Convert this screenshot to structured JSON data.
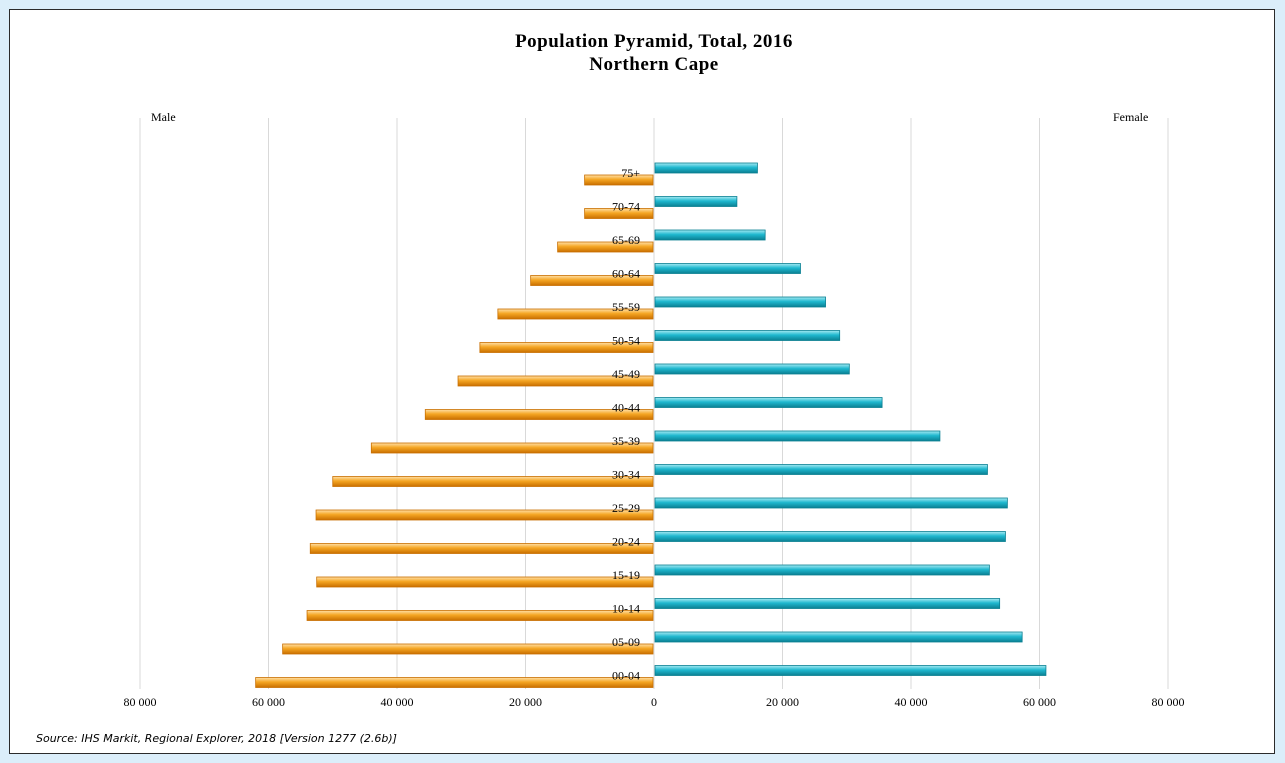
{
  "source": "Source: IHS Markit, Regional Explorer, 2018 [Version 1277 (2.6b)]",
  "colors": {
    "male": "#f5a623",
    "male_dark": "#c96f00",
    "female": "#1fb8cf",
    "female_dark": "#0a7f92",
    "grid": "#d9d9d9",
    "page_background": "#dbeefa",
    "frame_border": "#2b2b2b"
  },
  "chart_data": {
    "type": "bar",
    "orientation": "horizontal",
    "title": "Population Pyramid, Total, 2016",
    "subtitle": "Northern Cape",
    "left_label": "Male",
    "right_label": "Female",
    "categories": [
      "75+",
      "70-74",
      "65-69",
      "60-64",
      "55-59",
      "50-54",
      "45-49",
      "40-44",
      "35-39",
      "30-34",
      "25-29",
      "20-24",
      "15-19",
      "10-14",
      "05-09",
      "00-04"
    ],
    "series": [
      {
        "name": "Male",
        "values": [
          -10800,
          -10800,
          -15000,
          -19200,
          -24300,
          -27100,
          -30500,
          -35600,
          -44000,
          -50000,
          -52600,
          -53500,
          -52500,
          -54000,
          -57800,
          -62000
        ]
      },
      {
        "name": "Female",
        "values": [
          16100,
          12900,
          17300,
          22800,
          26700,
          28900,
          30400,
          35500,
          44500,
          51900,
          55000,
          54700,
          52200,
          53800,
          57300,
          61000
        ]
      }
    ],
    "x_ticks": [
      -80000,
      -60000,
      -40000,
      -20000,
      0,
      20000,
      40000,
      60000,
      80000
    ],
    "x_tick_labels": [
      "80 000",
      "60 000",
      "40 000",
      "20 000",
      "0",
      "20 000",
      "40 000",
      "60 000",
      "80 000"
    ],
    "xlim": [
      -80000,
      80000
    ],
    "grid": true,
    "legend": "none"
  }
}
